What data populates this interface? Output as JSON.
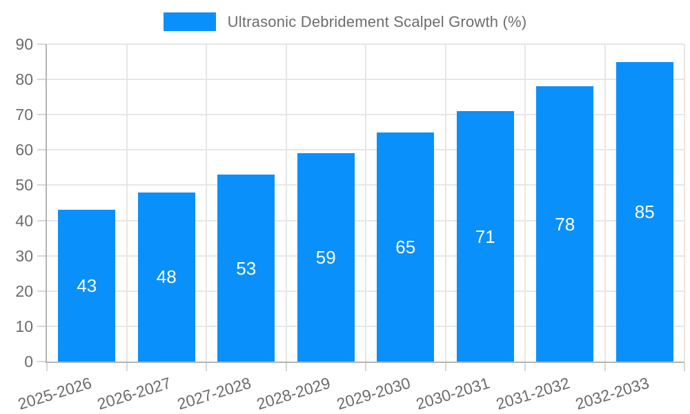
{
  "legend": {
    "position": "top"
  },
  "chart_data": {
    "type": "bar",
    "title": "Ultrasonic Debridement Scalpel Growth (%)",
    "categories": [
      "2025-2026",
      "2026-2027",
      "2027-2028",
      "2028-2029",
      "2029-2030",
      "2030-2031",
      "2031-2032",
      "2032-2033"
    ],
    "values": [
      43,
      48,
      53,
      59,
      65,
      71,
      78,
      85
    ],
    "value_labels": [
      "43",
      "48",
      "53",
      "59",
      "65",
      "71",
      "78",
      "85"
    ],
    "xlabel": "",
    "ylabel": "",
    "ylim": [
      0,
      90
    ],
    "yticks": [
      0,
      10,
      20,
      30,
      40,
      50,
      60,
      70,
      80,
      90
    ],
    "grid": true,
    "legend_position": "top",
    "bar_color": "#0990fb",
    "value_label_color": "#ffffff"
  },
  "colors": {
    "background": "#ffffff",
    "bar": "#0990fb",
    "grid": "#e6e6e6",
    "axis": "#b3b3b3",
    "tick": "#d6d6d6",
    "text": "#696b6d"
  }
}
